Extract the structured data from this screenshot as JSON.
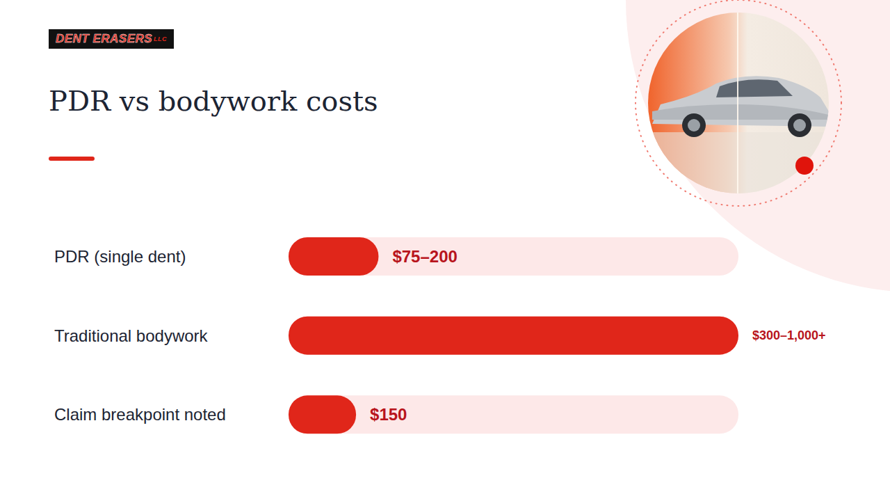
{
  "logo": {
    "name": "DENT ERASERS",
    "suffix": "LLC"
  },
  "chart_data": {
    "type": "bar",
    "title": "PDR vs bodywork costs",
    "orientation": "horizontal",
    "categories": [
      "PDR (single dent)",
      "Traditional bodywork",
      "Claim breakpoint noted"
    ],
    "values": [
      200,
      1000,
      150
    ],
    "value_labels": [
      "$75–200",
      "$300–1,000+",
      "$150"
    ],
    "color": "#e0261a",
    "xlim": [
      0,
      1000
    ],
    "grid": false,
    "data_labels": true,
    "tick_labels": "y"
  }
}
